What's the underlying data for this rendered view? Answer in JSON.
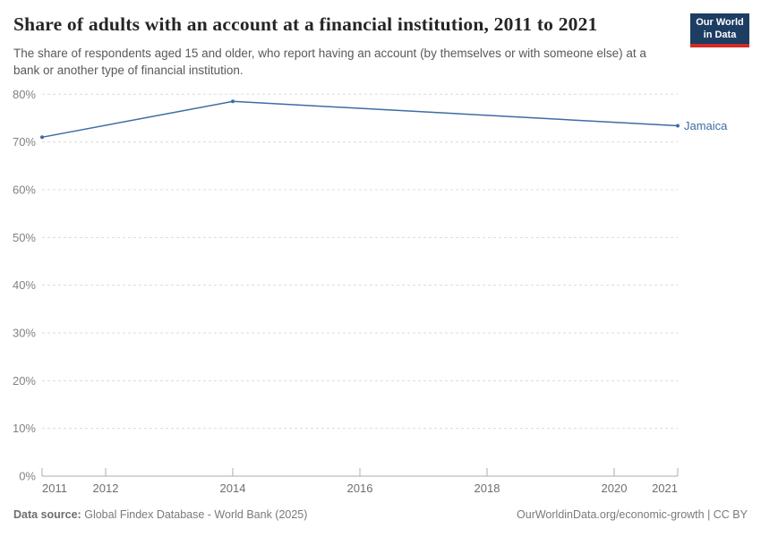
{
  "header": {
    "title": "Share of adults with an account at a financial institution, 2011 to 2021",
    "subtitle": "The share of respondents aged 15 and older, who report having an account (by themselves or with someone else) at a bank or another type of financial institution."
  },
  "logo": {
    "line1": "Our World",
    "line2": "in Data",
    "bg_color": "#1d3d63",
    "stripe_color": "#d42b27"
  },
  "chart_data": {
    "type": "line",
    "title": "Share of adults with an account at a financial institution, 2011 to 2021",
    "series": [
      {
        "name": "Jamaica",
        "color": "#3d6ca3",
        "x": [
          2011,
          2014,
          2021
        ],
        "values": [
          71,
          78.5,
          73.4
        ]
      }
    ],
    "xlim": [
      2011,
      2021
    ],
    "ylim": [
      0,
      80
    ],
    "x_ticks": [
      2011,
      2012,
      2014,
      2016,
      2018,
      2020,
      2021
    ],
    "y_ticks": [
      0,
      10,
      20,
      30,
      40,
      50,
      60,
      70,
      80
    ],
    "y_tick_suffix": "%",
    "grid": "horizontal-dashed",
    "legend_position": "end-of-line-label",
    "colors": {
      "grid": "#dcdcdc",
      "axis": "#adadad",
      "y_tick_label": "#828282",
      "x_tick_label": "#6e6e6e"
    }
  },
  "footer": {
    "source_label": "Data source:",
    "source_text": "Global Findex Database - World Bank (2025)",
    "right_text": "OurWorldinData.org/economic-growth | CC BY"
  }
}
